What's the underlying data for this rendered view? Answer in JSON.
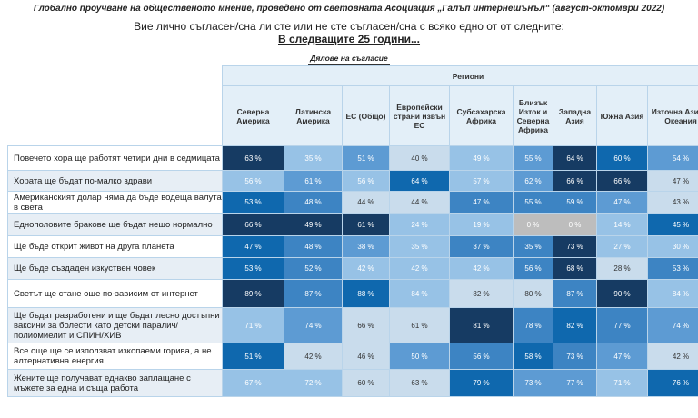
{
  "header": {
    "title": "Глобално проучване на общественото мнение, проведено от световната Асоциация „Галъп интернешънъл“ (август-октомври 2022)",
    "question": "Вие лично съгласен/сна ли сте или не сте съгласен/сна с всяко едно от от следните:",
    "horizon": "В следващите 25 години...",
    "subtitle": "Дялове на съгласие"
  },
  "table": {
    "group_header": "Региони",
    "columns": [
      "Северна Америка",
      "Латинска Америка",
      "ЕС (Общо)",
      "Европейски страни извън ЕС",
      "Субсахарска Африка",
      "Близък Изток и Северна Африка",
      "Западна Азия",
      "Южна Азия",
      "Източна Азия и Океания"
    ],
    "rows": [
      {
        "label": "Повечето хора ще работят четири дни в седмицата",
        "values": [
          "63 %",
          "35 %",
          "51 %",
          "40 %",
          "49 %",
          "55 %",
          "64 %",
          "60 %",
          "54 %"
        ]
      },
      {
        "label": "Хората ще бъдат по-малко здрави",
        "values": [
          "56 %",
          "61 %",
          "56 %",
          "64 %",
          "57 %",
          "62 %",
          "66 %",
          "66 %",
          "47 %"
        ]
      },
      {
        "label": "Американският долар няма да бъде водеща валута в света",
        "values": [
          "53 %",
          "48 %",
          "44 %",
          "44 %",
          "47 %",
          "55 %",
          "59 %",
          "47 %",
          "43 %"
        ]
      },
      {
        "label": "Еднополовите бракове ще бъдат нещо нормално",
        "values": [
          "66 %",
          "49 %",
          "61 %",
          "24 %",
          "19 %",
          "0 %",
          "0 %",
          "14 %",
          "45 %"
        ]
      },
      {
        "label": "Ще бъде открит живот на друга планета",
        "values": [
          "47 %",
          "48 %",
          "38 %",
          "35 %",
          "37 %",
          "35 %",
          "73 %",
          "27 %",
          "30 %"
        ]
      },
      {
        "label": "Ще бъде създаден изкуствен човек",
        "values": [
          "53 %",
          "52 %",
          "42 %",
          "42 %",
          "42 %",
          "56 %",
          "68 %",
          "28 %",
          "53 %"
        ]
      },
      {
        "label": "Светът ще стане още по-зависим от интернет",
        "values": [
          "89 %",
          "87 %",
          "88 %",
          "84 %",
          "82 %",
          "80 %",
          "87 %",
          "90 %",
          "84 %"
        ]
      },
      {
        "label": "Ще бъдат разработени и ще бъдат лесно достъпни ваксини за болести като детски паралич/полиомиелит и СПИН/ХИВ",
        "values": [
          "71 %",
          "74 %",
          "66 %",
          "61 %",
          "81 %",
          "78 %",
          "82 %",
          "77 %",
          "74 %"
        ]
      },
      {
        "label": "Все още ще се използват изкопаеми горива, а не алтернативна енергия",
        "values": [
          "51 %",
          "42 %",
          "46 %",
          "50 %",
          "56 %",
          "58 %",
          "73 %",
          "47 %",
          "42 %"
        ]
      },
      {
        "label": "Жените ще получават еднакво заплащане с мъжете за една и съща работа",
        "values": [
          "67 %",
          "72 %",
          "60 %",
          "63 %",
          "79 %",
          "73 %",
          "77 %",
          "71 %",
          "76 %"
        ]
      }
    ],
    "shades": [
      [
        "c1",
        "c5",
        "c4",
        "c6",
        "c5",
        "c4",
        "c1",
        "c2",
        "c4"
      ],
      [
        "c5",
        "c4",
        "c5",
        "c2",
        "c5",
        "c4",
        "c1",
        "c1",
        "c6"
      ],
      [
        "c2",
        "c3",
        "c6",
        "c6",
        "c3",
        "c3",
        "c3",
        "c4",
        "c6"
      ],
      [
        "c1",
        "c1",
        "c1",
        "c5",
        "c5",
        "cz",
        "cz",
        "c5",
        "c2"
      ],
      [
        "c2",
        "c3",
        "c4",
        "c5",
        "c3",
        "c3",
        "c1",
        "c5",
        "c5"
      ],
      [
        "c2",
        "c3",
        "c5",
        "c5",
        "c5",
        "c3",
        "c1",
        "c6",
        "c3"
      ],
      [
        "c1",
        "c3",
        "c2",
        "c5",
        "c6",
        "c6",
        "c3",
        "c1",
        "c5"
      ],
      [
        "c5",
        "c4",
        "c6",
        "c6",
        "c1",
        "c3",
        "c2",
        "c3",
        "c4"
      ],
      [
        "c2",
        "c6",
        "c6",
        "c4",
        "c3",
        "c2",
        "c3",
        "c4",
        "c6"
      ],
      [
        "c5",
        "c5",
        "c6",
        "c6",
        "c2",
        "c4",
        "c4",
        "c5",
        "c2"
      ]
    ]
  }
}
